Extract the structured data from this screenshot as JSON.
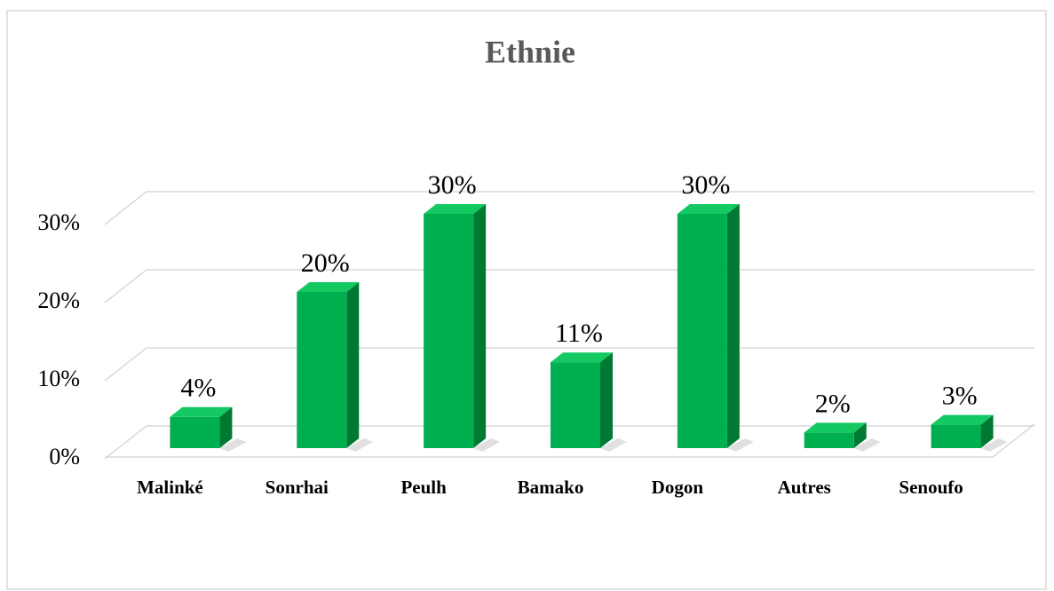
{
  "chart_data": {
    "type": "bar3d",
    "title": "Ethnie",
    "categories": [
      "Malinké",
      "Sonrhai",
      "Peulh",
      "Bamako",
      "Dogon",
      "Autres",
      "Senoufo"
    ],
    "values": [
      4,
      20,
      30,
      11,
      30,
      2,
      3
    ],
    "value_labels": [
      "4%",
      "20%",
      "30%",
      "11%",
      "30%",
      "2%",
      "3%"
    ],
    "color": "#00b050",
    "ylim": [
      0,
      30
    ],
    "yticks": [
      {
        "value": 0,
        "label": "0%"
      },
      {
        "value": 10,
        "label": "10%"
      },
      {
        "value": 20,
        "label": "20%"
      },
      {
        "value": 30,
        "label": "30%"
      }
    ],
    "grid": true
  }
}
